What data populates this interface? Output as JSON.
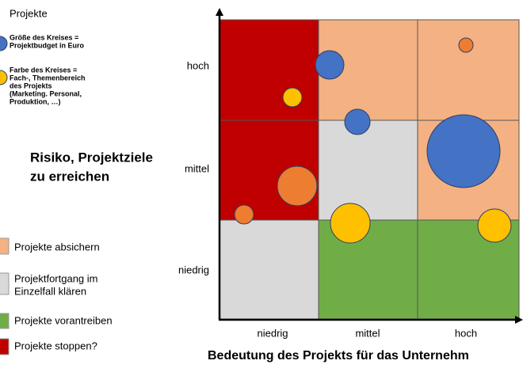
{
  "intro": {
    "title": "Projekte",
    "size_note": [
      "Größe des Kreises =",
      "Projektbudget in Euro"
    ],
    "color_note": [
      "Farbe des Kreises =",
      "Fach-, Themenbereich",
      "des Projekts",
      "(Marketing. Personal,",
      "Produktion, …)"
    ]
  },
  "y_axis": {
    "title": [
      "Risiko, Projektziele",
      "zu erreichen"
    ],
    "labels": [
      "hoch",
      "mittel",
      "niedrig"
    ]
  },
  "x_axis": {
    "title": "Bedeutung des Projekts für das Unternehm",
    "labels": [
      "niedrig",
      "mittel",
      "hoch"
    ]
  },
  "legend": [
    {
      "label": [
        "Projekte absichern"
      ]
    },
    {
      "label": [
        "Projektfortgang im",
        "Einzelfall klären"
      ]
    },
    {
      "label": [
        "Projekte vorantreiben"
      ]
    },
    {
      "label": [
        "Projekte stoppen?"
      ]
    }
  ]
}
